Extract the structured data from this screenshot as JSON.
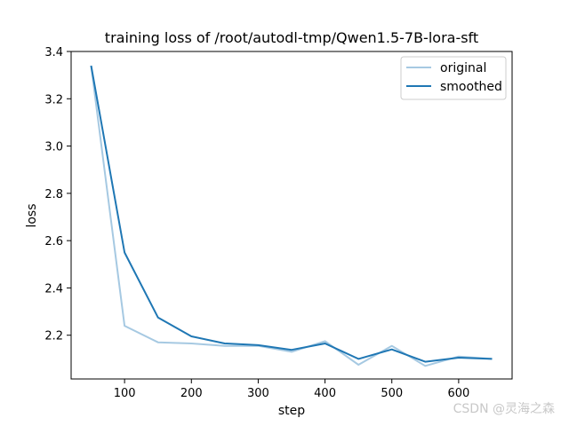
{
  "chart_data": {
    "type": "line",
    "title": "training loss of /root/autodl-tmp/Qwen1.5-7B-lora-sft",
    "xlabel": "step",
    "ylabel": "loss",
    "xlim": [
      20,
      680
    ],
    "ylim": [
      2.015,
      3.4
    ],
    "xticks": [
      100,
      200,
      300,
      400,
      500,
      600
    ],
    "yticks": [
      2.2,
      2.4,
      2.6,
      2.8,
      3.0,
      3.2,
      3.4
    ],
    "xtick_labels": [
      "100",
      "200",
      "300",
      "400",
      "500",
      "600"
    ],
    "ytick_labels": [
      "2.2",
      "2.4",
      "2.6",
      "2.8",
      "3.0",
      "3.2",
      "3.4"
    ],
    "grid": false,
    "legend_position": "top-right",
    "series": [
      {
        "name": "original",
        "color": "#a6c9e2",
        "x": [
          50,
          100,
          150,
          200,
          250,
          300,
          350,
          400,
          450,
          500,
          550,
          600,
          650
        ],
        "y": [
          3.34,
          2.24,
          2.17,
          2.165,
          2.155,
          2.155,
          2.13,
          2.175,
          2.075,
          2.155,
          2.07,
          2.11,
          2.1
        ]
      },
      {
        "name": "smoothed",
        "color": "#1f77b4",
        "x": [
          50,
          100,
          150,
          200,
          250,
          300,
          350,
          400,
          450,
          500,
          550,
          600,
          650
        ],
        "y": [
          3.34,
          2.55,
          2.275,
          2.195,
          2.165,
          2.158,
          2.138,
          2.165,
          2.1,
          2.14,
          2.088,
          2.105,
          2.1
        ]
      }
    ]
  },
  "watermark": "CSDN @灵海之森"
}
